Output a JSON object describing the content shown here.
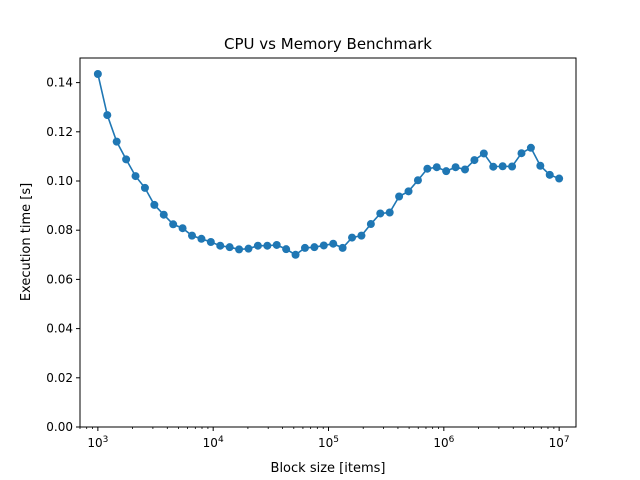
{
  "chart_data": {
    "type": "line",
    "title": "CPU vs Memory Benchmark",
    "xlabel": "Block size [items]",
    "ylabel": "Execution time [s]",
    "xscale": "log",
    "xlim": [
      700,
      14000000
    ],
    "ylim": [
      0.0,
      0.15
    ],
    "grid": false,
    "legend": "none",
    "color": "#1f77b4",
    "markers": true,
    "x_ticks": [
      {
        "value": 1000,
        "base": "10",
        "exp": "3"
      },
      {
        "value": 10000,
        "base": "10",
        "exp": "4"
      },
      {
        "value": 100000,
        "base": "10",
        "exp": "5"
      },
      {
        "value": 1000000,
        "base": "10",
        "exp": "6"
      },
      {
        "value": 10000000,
        "base": "10",
        "exp": "7"
      }
    ],
    "y_ticks": [
      "0.00",
      "0.02",
      "0.04",
      "0.06",
      "0.08",
      "0.10",
      "0.12",
      "0.14"
    ],
    "series": [
      {
        "x": [
          1000,
          1207,
          1456,
          1758,
          2121,
          2560,
          3089,
          3728,
          4498,
          5429,
          6551,
          7906,
          9541,
          11514,
          13895,
          16768,
          20236,
          24421,
          29471,
          35565,
          42919,
          51795,
          62506,
          75431,
          91029,
          109854,
          132571,
          159986,
          193070,
          232995,
          281177,
          339322,
          409492,
          494171,
          596362,
          719686,
          868511,
          1048113,
          1264855,
          1526418,
          1842070,
          2222996,
          2682696,
          3237458,
          3906940,
          4714866,
          5689866,
          6866488,
          8286428,
          10000000
        ],
        "y": [
          0.1435,
          0.1268,
          0.116,
          0.1088,
          0.102,
          0.0972,
          0.0903,
          0.0863,
          0.0824,
          0.0808,
          0.0778,
          0.0765,
          0.0752,
          0.0737,
          0.0731,
          0.0722,
          0.0725,
          0.0737,
          0.0737,
          0.074,
          0.0723,
          0.07,
          0.0728,
          0.0731,
          0.0738,
          0.0745,
          0.0728,
          0.077,
          0.0778,
          0.0825,
          0.0868,
          0.0872,
          0.0937,
          0.0958,
          0.1003,
          0.105,
          0.1056,
          0.104,
          0.1056,
          0.1047,
          0.1085,
          0.1112,
          0.1058,
          0.106,
          0.1059,
          0.1113,
          0.1135,
          0.1062,
          0.1025,
          0.101
        ]
      }
    ]
  }
}
